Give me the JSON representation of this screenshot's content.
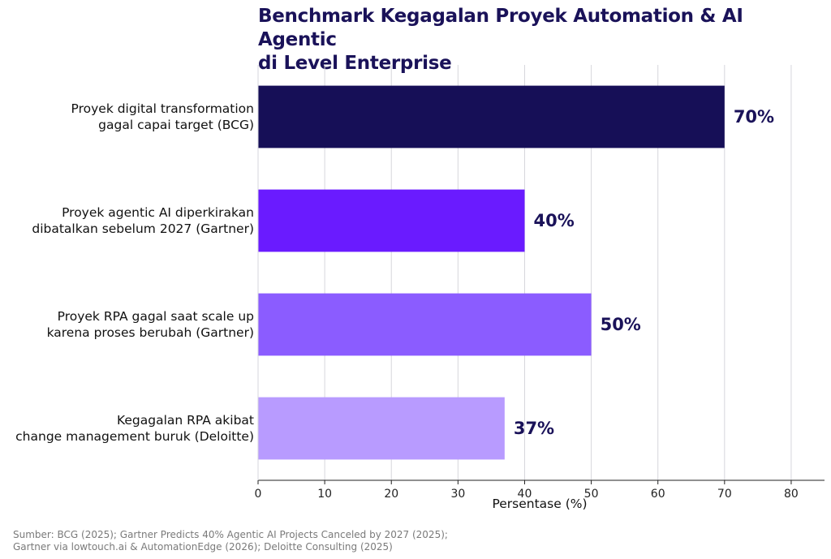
{
  "chart_data": {
    "type": "bar",
    "orientation": "horizontal",
    "title_lines": [
      "Benchmark Kegagalan Proyek Automation & AI Agentic",
      "di Level Enterprise"
    ],
    "categories": [
      [
        "Proyek digital transformation",
        "gagal capai target (BCG)"
      ],
      [
        "Proyek agentic AI diperkirakan",
        "dibatalkan sebelum 2027 (Gartner)"
      ],
      [
        "Proyek RPA gagal saat scale up",
        "karena proses berubah (Gartner)"
      ],
      [
        "Kegagalan RPA akibat",
        "change management buruk (Deloitte)"
      ]
    ],
    "values": [
      70,
      40,
      50,
      37
    ],
    "data_labels": [
      "70%",
      "40%",
      "50%",
      "37%"
    ],
    "colors": [
      "#160f57",
      "#6a1bff",
      "#8b5cff",
      "#b89bff"
    ],
    "xlabel": "Persentase (%)",
    "xlim": [
      0,
      85
    ],
    "xticks": [
      0,
      10,
      20,
      30,
      40,
      50,
      60,
      70,
      80
    ],
    "xtick_labels": [
      "0",
      "10",
      "20",
      "30",
      "40",
      "50",
      "60",
      "70",
      "80"
    ],
    "grid": "vertical"
  },
  "source_lines": [
    "Sumber: BCG (2025); Gartner Predicts 40% Agentic AI Projects Canceled by 2027 (2025);",
    "Gartner via lowtouch.ai & AutomationEdge (2026); Deloitte Consulting (2025)"
  ]
}
